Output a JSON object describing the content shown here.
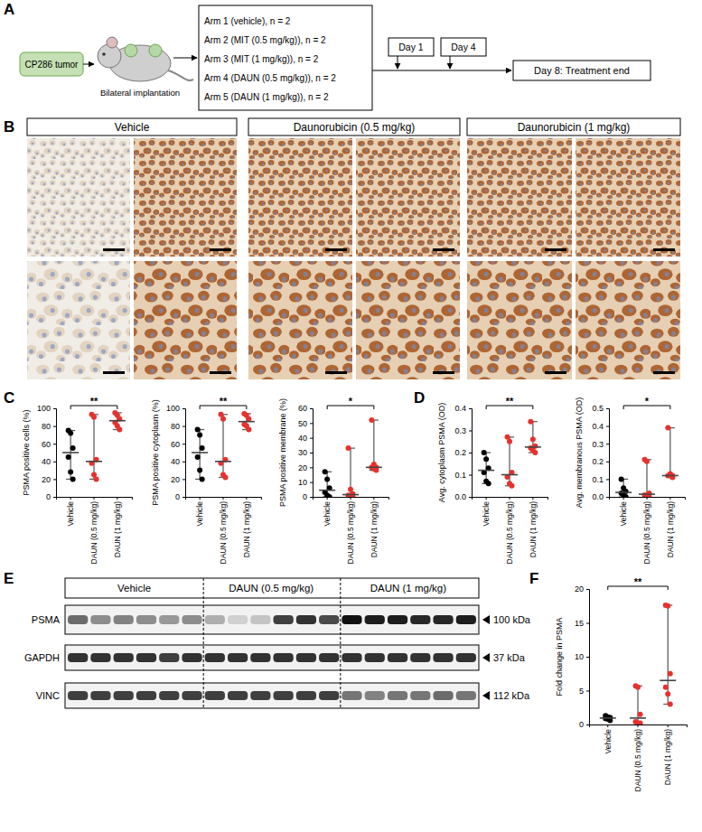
{
  "panel_labels": [
    "A",
    "B",
    "C",
    "D",
    "E",
    "F"
  ],
  "schematic": {
    "tumor": "CP286 tumor",
    "implant": "Bilateral implantation",
    "arms": [
      "Arm 1 (vehicle), n = 2",
      "Arm 2 (MIT (0.5 mg/kg)), n = 2",
      "Arm 3 (MIT (1 mg/kg)), n = 2",
      "Arm 4 (DAUN (0.5 mg/kg)), n = 2",
      "Arm 5 (DAUN (1 mg/kg)), n = 2"
    ],
    "days": [
      "Day 1",
      "Day 4"
    ],
    "end": "Day 8: Treatment end"
  },
  "ihc": {
    "groups": [
      "Vehicle",
      "Daunorubicin (0.5 mg/kg)",
      "Daunorubicin (1 mg/kg)"
    ]
  },
  "blot": {
    "groups": [
      "Vehicle",
      "DAUN (0.5 mg/kg)",
      "DAUN (1 mg/kg)"
    ],
    "rows": [
      {
        "name": "PSMA",
        "size": "100 kDa",
        "intensity": [
          0.6,
          0.45,
          0.5,
          0.45,
          0.4,
          0.45,
          0.3,
          0.15,
          0.2,
          0.8,
          0.85,
          0.75,
          1,
          0.95,
          0.95,
          0.9,
          0.9,
          0.95
        ]
      },
      {
        "name": "GAPDH",
        "size": "37 kDa",
        "intensity": [
          0.85,
          0.85,
          0.85,
          0.85,
          0.8,
          0.85,
          0.85,
          0.85,
          0.85,
          0.85,
          0.85,
          0.85,
          0.85,
          0.85,
          0.85,
          0.85,
          0.85,
          0.85
        ]
      },
      {
        "name": "VINC",
        "size": "112 kDa",
        "intensity": [
          0.8,
          0.8,
          0.8,
          0.8,
          0.8,
          0.8,
          0.8,
          0.8,
          0.8,
          0.8,
          0.8,
          0.8,
          0.55,
          0.5,
          0.55,
          0.55,
          0.6,
          0.55
        ]
      }
    ]
  },
  "chart_data": [
    {
      "type": "scatter",
      "ylabel": "PSMA positive cells (%)",
      "categories": [
        "Vehicle",
        "DAUN (0.5 mg/kg)",
        "DAUN (1 mg/kg)"
      ],
      "values": [
        [
          75,
          72,
          55,
          45,
          28,
          20
        ],
        [
          93,
          90,
          42,
          38,
          25,
          20
        ],
        [
          95,
          92,
          88,
          84,
          80,
          76
        ]
      ],
      "medians": [
        50,
        40,
        86
      ],
      "ranges": [
        [
          20,
          75
        ],
        [
          20,
          93
        ],
        [
          76,
          95
        ]
      ],
      "colors": [
        "#000000",
        "#e8312e",
        "#e8312e"
      ],
      "ylim": [
        0,
        100
      ],
      "yticks": [
        0,
        20,
        40,
        60,
        80,
        100
      ],
      "annotations": [
        {
          "text": "**",
          "from": "Vehicle",
          "to": "DAUN (1 mg/kg)"
        }
      ]
    },
    {
      "type": "scatter",
      "ylabel": "PSMA positive cytoplasm (%)",
      "categories": [
        "Vehicle",
        "DAUN (0.5 mg/kg)",
        "DAUN (1 mg/kg)"
      ],
      "values": [
        [
          76,
          70,
          55,
          45,
          30,
          20
        ],
        [
          93,
          88,
          42,
          38,
          25,
          22
        ],
        [
          94,
          92,
          88,
          82,
          80,
          76
        ]
      ],
      "medians": [
        50,
        40,
        85
      ],
      "ranges": [
        [
          20,
          76
        ],
        [
          22,
          93
        ],
        [
          76,
          94
        ]
      ],
      "colors": [
        "#000000",
        "#e8312e",
        "#e8312e"
      ],
      "ylim": [
        0,
        100
      ],
      "yticks": [
        0,
        20,
        40,
        60,
        80,
        100
      ],
      "annotations": [
        {
          "text": "**",
          "from": "Vehicle",
          "to": "DAUN (1 mg/kg)"
        }
      ]
    },
    {
      "type": "scatter",
      "ylabel": "PSMA positive membrane (%)",
      "categories": [
        "Vehicle",
        "DAUN (0.5 mg/kg)",
        "DAUN (1 mg/kg)"
      ],
      "values": [
        [
          17,
          12,
          6,
          3,
          1,
          0
        ],
        [
          33,
          5,
          2,
          1,
          0,
          0
        ],
        [
          52,
          22,
          20,
          20,
          19,
          18
        ]
      ],
      "medians": [
        4.5,
        1.5,
        20
      ],
      "ranges": [
        [
          0,
          17
        ],
        [
          0,
          33
        ],
        [
          18,
          52
        ]
      ],
      "colors": [
        "#000000",
        "#e8312e",
        "#e8312e"
      ],
      "ylim": [
        0,
        60
      ],
      "yticks": [
        0,
        10,
        20,
        30,
        40,
        50,
        60
      ],
      "annotations": [
        {
          "text": "*",
          "from": "Vehicle",
          "to": "DAUN (1 mg/kg)"
        }
      ]
    },
    {
      "type": "scatter",
      "ylabel": "Avg. cytoplasm PSMA (OD)",
      "categories": [
        "Vehicle",
        "DAUN (0.5 mg/kg)",
        "DAUN (1 mg/kg)"
      ],
      "values": [
        [
          0.2,
          0.17,
          0.13,
          0.11,
          0.07,
          0.06
        ],
        [
          0.27,
          0.25,
          0.11,
          0.09,
          0.06,
          0.05
        ],
        [
          0.34,
          0.26,
          0.23,
          0.22,
          0.21,
          0.2
        ]
      ],
      "medians": [
        0.12,
        0.1,
        0.225
      ],
      "ranges": [
        [
          0.06,
          0.2
        ],
        [
          0.05,
          0.27
        ],
        [
          0.2,
          0.34
        ]
      ],
      "colors": [
        "#000000",
        "#e8312e",
        "#e8312e"
      ],
      "ylim": [
        0,
        0.4
      ],
      "yticks": [
        {
          "value": 0,
          "label": "0.0"
        },
        0.1,
        0.2,
        0.3,
        0.4
      ],
      "annotations": [
        {
          "text": "**",
          "from": "Vehicle",
          "to": "DAUN (1 mg/kg)"
        }
      ]
    },
    {
      "type": "scatter",
      "ylabel": "Avg. membranous PSMA (OD)",
      "categories": [
        "Vehicle",
        "DAUN (0.5 mg/kg)",
        "DAUN (1 mg/kg)"
      ],
      "values": [
        [
          0.1,
          0.05,
          0.03,
          0.02,
          0.01,
          0
        ],
        [
          0.21,
          0.2,
          0.02,
          0.01,
          0.005,
          0
        ],
        [
          0.39,
          0.13,
          0.12,
          0.12,
          0.12,
          0.11
        ]
      ],
      "medians": [
        0.025,
        0.015,
        0.12
      ],
      "ranges": [
        [
          0,
          0.1
        ],
        [
          0,
          0.21
        ],
        [
          0.11,
          0.39
        ]
      ],
      "colors": [
        "#000000",
        "#e8312e",
        "#e8312e"
      ],
      "ylim": [
        0,
        0.5
      ],
      "yticks": [
        {
          "value": 0,
          "label": "0.0"
        },
        0.1,
        0.2,
        0.3,
        0.4,
        0.5
      ],
      "annotations": [
        {
          "text": "*",
          "from": "Vehicle",
          "to": "DAUN (1 mg/kg)"
        }
      ]
    },
    {
      "type": "scatter",
      "ylabel": "Fold change in PSMA",
      "categories": [
        "Vehicle",
        "DAUN (0.5 mg/kg)",
        "DAUN (1 mg/kg)"
      ],
      "values": [
        [
          1.3,
          1.1,
          1,
          0.9,
          0.8,
          0.6
        ],
        [
          5.7,
          5.5,
          1.5,
          0.4,
          0.2,
          0.2
        ],
        [
          17.6,
          17.5,
          7.5,
          5.5,
          4.5,
          3
        ]
      ],
      "medians": [
        0.95,
        0.95,
        6.5
      ],
      "ranges": [
        [
          0.6,
          1.3
        ],
        [
          0.2,
          5.7
        ],
        [
          3,
          17.6
        ]
      ],
      "colors": [
        "#000000",
        "#e8312e",
        "#e8312e"
      ],
      "ylim": [
        0,
        20
      ],
      "yticks": [
        0,
        5,
        10,
        15,
        20
      ],
      "annotations": [
        {
          "text": "**",
          "from": "Vehicle",
          "to": "DAUN (1 mg/kg)"
        }
      ]
    }
  ]
}
